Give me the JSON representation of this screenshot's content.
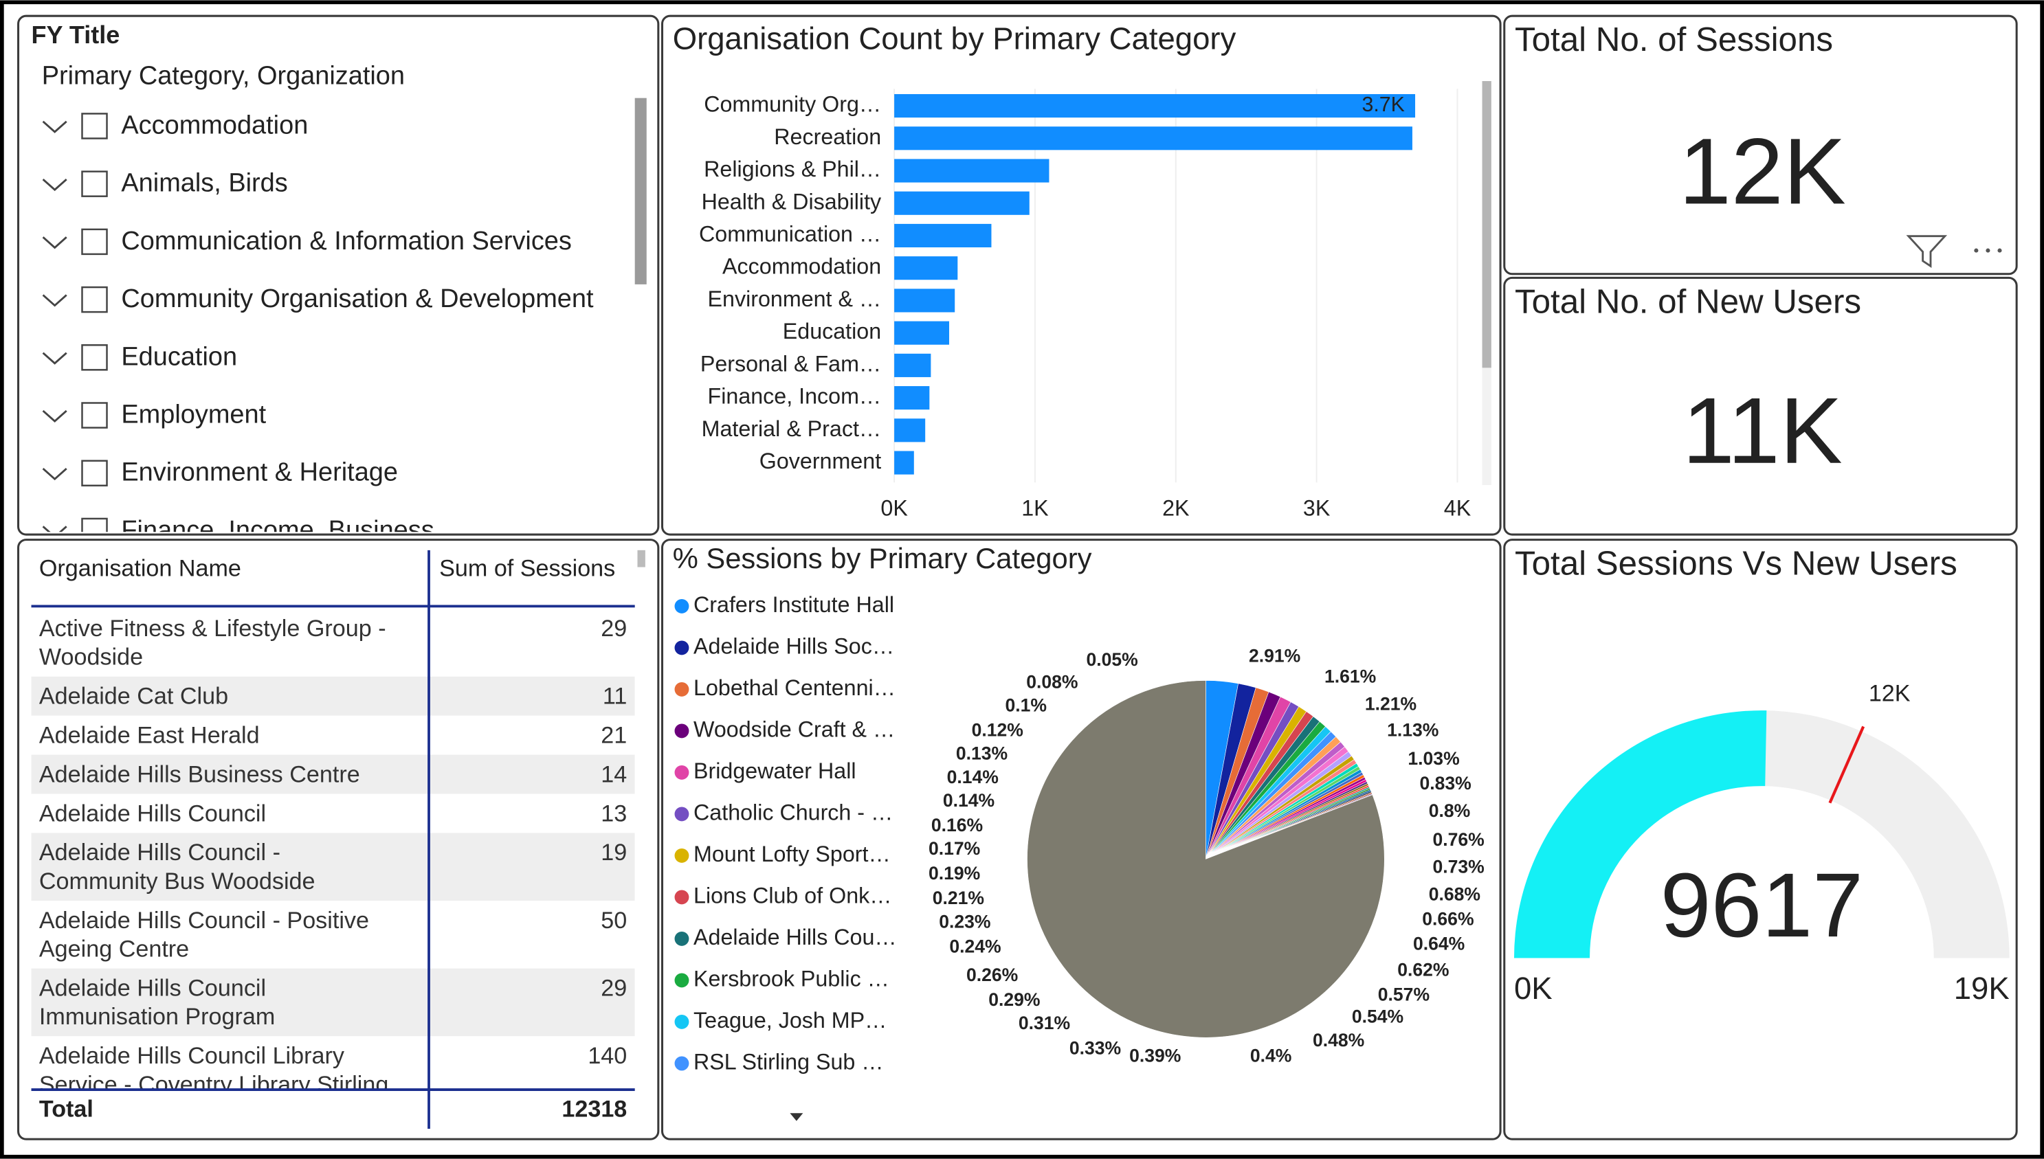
{
  "slicer": {
    "title": "FY Title",
    "header": "Primary Category, Organization",
    "items": [
      "Accommodation",
      "Animals, Birds",
      "Communication & Information Services",
      "Community Organisation & Development",
      "Education",
      "Employment",
      "Environment & Heritage",
      "Finance, Income, Business"
    ]
  },
  "chart_data": [
    {
      "type": "bar",
      "title": "Organisation Count by Primary Category",
      "categories": [
        "Community Org…",
        "Recreation",
        "Religions & Phil…",
        "Health & Disability",
        "Communication …",
        "Accommodation",
        "Environment & …",
        "Education",
        "Personal & Fam…",
        "Finance, Incom…",
        "Material & Pract…",
        "Government"
      ],
      "values": [
        3700,
        3680,
        1100,
        960,
        690,
        450,
        430,
        390,
        260,
        250,
        220,
        140
      ],
      "value_labels": [
        "3.7K",
        null,
        null,
        null,
        null,
        null,
        null,
        null,
        null,
        null,
        null,
        null
      ],
      "color": "#118DFF",
      "xlim": [
        0,
        4000
      ],
      "xticks": [
        {
          "value": 0,
          "label": "0K"
        },
        {
          "value": 1000,
          "label": "1K"
        },
        {
          "value": 2000,
          "label": "2K"
        },
        {
          "value": 3000,
          "label": "3K"
        },
        {
          "value": 4000,
          "label": "4K"
        }
      ],
      "grid": true
    },
    {
      "type": "pie",
      "title": "% Sessions by Primary Category",
      "categories": [
        "Crafers Institute Hall",
        "Adelaide Hills Soc…",
        "Lobethal Centenni…",
        "Woodside Craft & …",
        "Bridgewater Hall",
        "Catholic Church - …",
        "Mount Lofty Sport…",
        "Lions Club of Onk…",
        "Adelaide Hills Cou…",
        "Kersbrook Public …",
        "Teague, Josh  MP…",
        "RSL Stirling Sub …",
        null,
        null,
        null,
        null,
        null,
        null,
        null,
        null,
        null,
        null,
        null,
        null,
        null,
        null,
        null,
        null,
        null,
        null,
        null,
        null,
        null,
        null,
        null
      ],
      "values": [
        2.91,
        1.61,
        1.21,
        1.13,
        1.03,
        0.83,
        0.8,
        0.76,
        0.73,
        0.68,
        0.66,
        0.64,
        0.62,
        0.57,
        0.54,
        0.48,
        0.4,
        0.39,
        0.33,
        0.31,
        0.29,
        0.26,
        0.24,
        0.23,
        0.21,
        0.19,
        0.17,
        0.16,
        0.14,
        0.14,
        0.13,
        0.12,
        0.1,
        0.08,
        0.05
      ],
      "value_labels": [
        "2.91%",
        "1.61%",
        "1.21%",
        "1.13%",
        "1.03%",
        "0.83%",
        "0.8%",
        "0.76%",
        "0.73%",
        "0.68%",
        "0.66%",
        "0.64%",
        "0.62%",
        "0.57%",
        "0.54%",
        "0.48%",
        "0.4%",
        "0.39%",
        "0.33%",
        "0.31%",
        "0.29%",
        "0.26%",
        "0.24%",
        "0.23%",
        "0.21%",
        "0.19%",
        "0.17%",
        "0.16%",
        "0.14%",
        "0.14%",
        "0.13%",
        "0.12%",
        "0.1%",
        "0.08%",
        "0.05%"
      ],
      "colors": [
        "#118DFF",
        "#12239E",
        "#E66C37",
        "#6B007B",
        "#E044A7",
        "#744EC2",
        "#D9B300",
        "#D64550",
        "#197278",
        "#1AAB40",
        "#15C6F4",
        "#4092FF",
        "#FFA058",
        "#BE5DC9",
        "#F472D0",
        "#B5A1FF",
        "#C4A200",
        "#FF8080",
        "#00DBBC",
        "#5BD667",
        "#0091D5",
        "#4668C5",
        "#FF6300",
        "#99008A",
        "#EC008C",
        "#533285",
        "#99700A",
        "#FF4141",
        "#1F9A85",
        "#25891C",
        "#0057A2",
        "#002050",
        "#C94F0F",
        "#450F54",
        "#B60064"
      ]
    },
    {
      "type": "gauge",
      "title": "Total Sessions Vs New Users",
      "value": 9617,
      "color": "#14F0F5",
      "ylim": [
        0,
        19000
      ],
      "yticks": [
        {
          "value": 0,
          "label": "0K"
        },
        {
          "value": 19000,
          "label": "19K"
        }
      ],
      "target": {
        "value": 12000,
        "label": "12K"
      }
    }
  ],
  "cards": [
    {
      "title": "Total No. of Sessions",
      "value": "12K"
    },
    {
      "title": "Total No. of New Users",
      "value": "11K"
    }
  ],
  "table": {
    "columns": [
      "Organisation Name",
      "Sum of Sessions"
    ],
    "rows": [
      [
        "Active Fitness & Lifestyle Group - Woodside",
        29
      ],
      [
        "Adelaide Cat Club",
        11
      ],
      [
        "Adelaide East Herald",
        21
      ],
      [
        "Adelaide Hills Business Centre",
        14
      ],
      [
        "Adelaide Hills Council",
        13
      ],
      [
        "Adelaide Hills Council - Community Bus Woodside",
        19
      ],
      [
        "Adelaide Hills Council - Positive Ageing Centre",
        50
      ],
      [
        "Adelaide Hills Council Immunisation Program",
        29
      ],
      [
        "Adelaide Hills Council Library Service - Coventry Library Stirling",
        140
      ]
    ],
    "total": [
      "Total",
      12318
    ]
  }
}
